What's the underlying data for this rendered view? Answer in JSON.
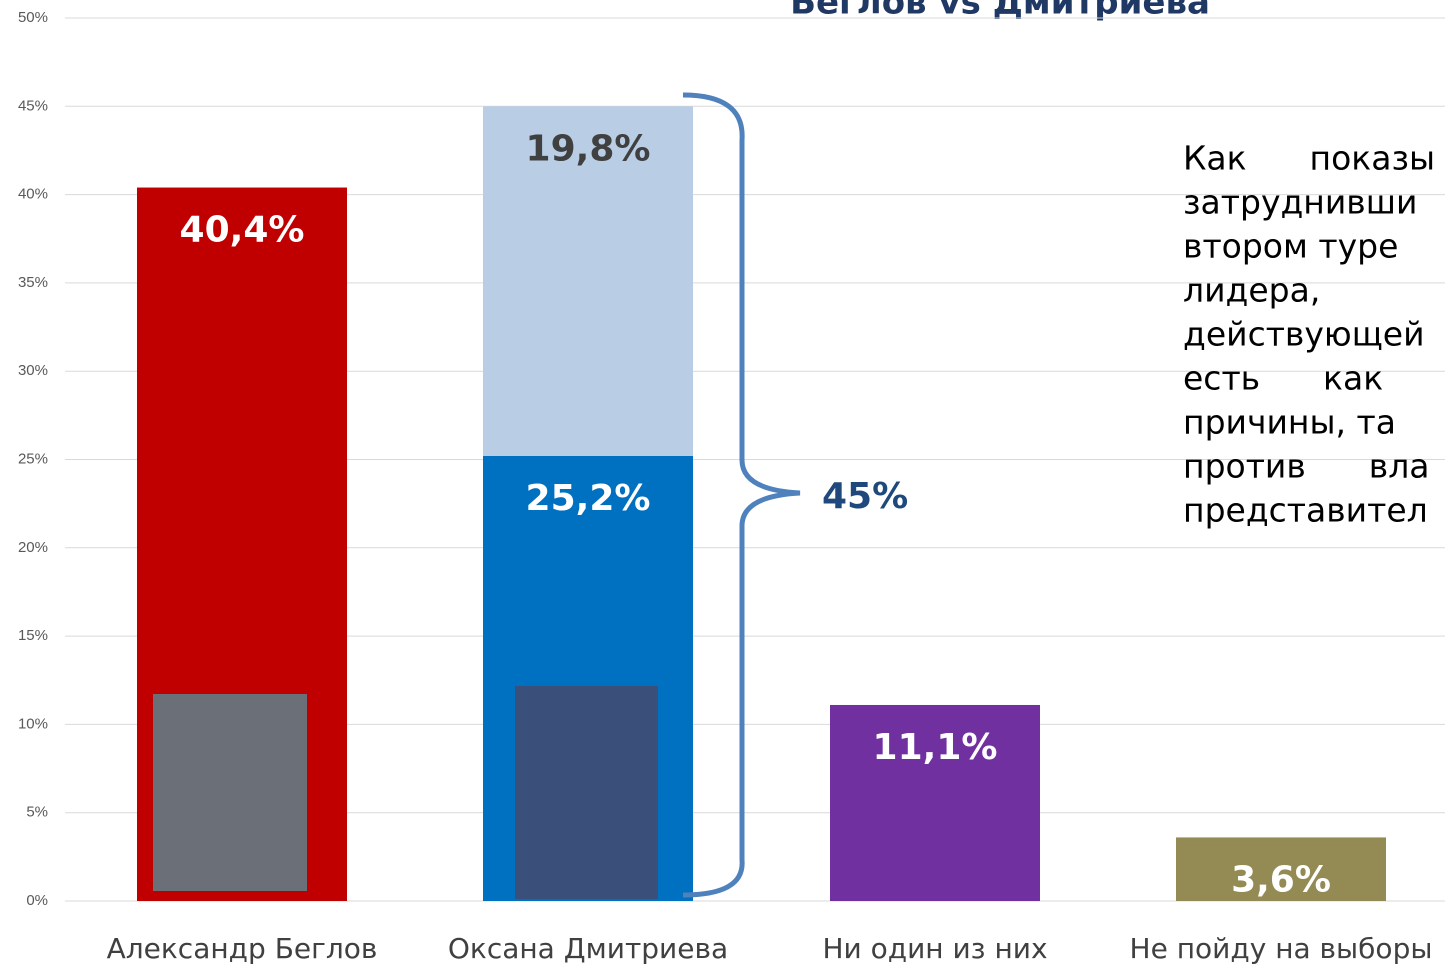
{
  "chart_data": {
    "type": "stacked_bar",
    "title": "Беглов vs Дмитриева",
    "categories": [
      "Александр Беглов",
      "Оксана Дмитриева",
      "Ни один из них",
      "Не пойду на выборы"
    ],
    "series": [
      {
        "colors": [
          "#c00000",
          "#0070c0",
          "#7030a0",
          "#948a54"
        ],
        "label_color": "#ffffff",
        "values": [
          40.4,
          25.2,
          11.1,
          3.6
        ],
        "value_labels": [
          "40,4%",
          "25,2%",
          "11,1%",
          "3,6%"
        ]
      },
      {
        "color": "#b9cde5",
        "label_color": "#404040",
        "values": [
          null,
          19.8,
          null,
          null
        ],
        "value_labels": [
          null,
          "19,8%",
          null,
          null
        ]
      }
    ],
    "ylim": [
      0,
      50
    ],
    "yticks": [
      {
        "value": 0,
        "label": "0%"
      },
      {
        "value": 5,
        "label": "5%"
      },
      {
        "value": 10,
        "label": "10%"
      },
      {
        "value": 15,
        "label": "15%"
      },
      {
        "value": 20,
        "label": "20%"
      },
      {
        "value": 25,
        "label": "25%"
      },
      {
        "value": 30,
        "label": "30%"
      },
      {
        "value": 35,
        "label": "35%"
      },
      {
        "value": 40,
        "label": "40%"
      },
      {
        "value": 45,
        "label": "45%"
      },
      {
        "value": 50,
        "label": "50%"
      }
    ],
    "grid": true,
    "annotation": "45%",
    "note_lines": [
      "Как      показы",
      "затруднивши",
      "втором туре",
      "лидера,",
      "действующей",
      "есть      как",
      "причины, та",
      "против      вла",
      "представител"
    ]
  }
}
